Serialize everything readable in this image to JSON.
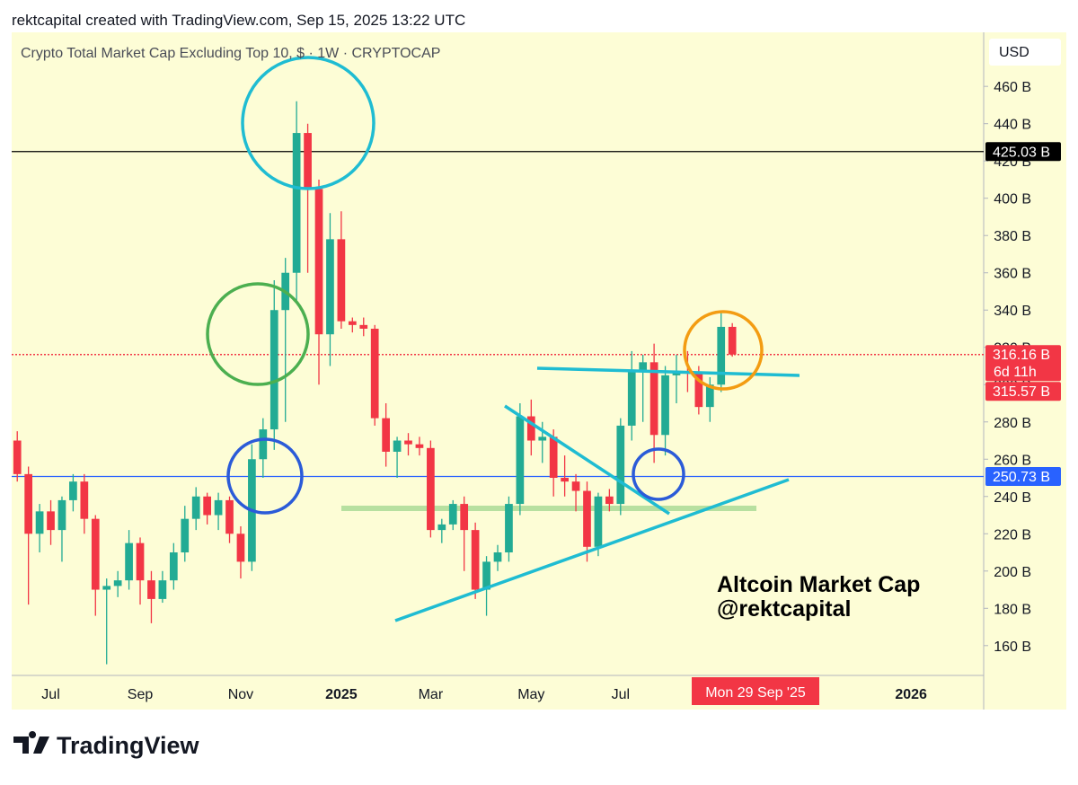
{
  "header": "rektcapital created with TradingView.com, Sep 15, 2025 13:22 UTC",
  "chart_data": {
    "type": "candlestick",
    "title": "Crypto Total Market Cap Excluding Top 10, $ · 1W · CRYPTOCAP",
    "currency": "USD",
    "annotation": [
      "Altcoin Market Cap",
      "@rektcapital"
    ],
    "crosshair_label": "Mon 29 Sep '25",
    "countdown": "6d 11h",
    "up_color": "#22ab94",
    "down_color": "#f23645",
    "categories": [
      null,
      null,
      null,
      "Jul",
      null,
      null,
      null,
      null,
      null,
      null,
      null,
      "Sep",
      null,
      null,
      null,
      null,
      null,
      null,
      null,
      null,
      "Nov",
      null,
      null,
      null,
      null,
      null,
      null,
      null,
      null,
      "2025",
      null,
      null,
      null,
      null,
      null,
      null,
      null,
      "Mar",
      null,
      null,
      null,
      null,
      null,
      null,
      null,
      null,
      "May",
      null,
      null,
      null,
      null,
      null,
      null,
      null,
      "Jul",
      null,
      null,
      null,
      null,
      null,
      null,
      null,
      null,
      null,
      null,
      null,
      null,
      null,
      null,
      null,
      null,
      null,
      null,
      null,
      null,
      null,
      null,
      null,
      null,
      null,
      "2026",
      null,
      null,
      null,
      null,
      null,
      null
    ],
    "open": [
      270,
      252,
      220,
      232,
      222,
      238,
      248,
      228,
      190,
      192,
      195,
      215,
      195,
      185,
      195,
      210,
      228,
      240,
      230,
      238,
      220,
      205,
      260,
      276,
      340,
      360,
      435,
      405,
      327,
      378,
      334,
      332,
      330,
      282,
      264,
      270,
      268,
      266,
      222,
      225,
      236,
      222,
      190,
      205,
      210,
      236,
      283,
      270,
      272,
      250,
      248,
      243,
      213,
      240,
      236,
      278,
      307,
      312,
      273,
      305,
      307,
      306,
      288,
      300,
      331,
      null,
      null,
      null,
      null,
      null,
      null,
      null,
      null,
      null,
      null,
      null,
      null,
      null,
      null,
      null,
      null,
      null,
      null,
      null,
      null,
      null,
      null
    ],
    "high": [
      275,
      256,
      236,
      238,
      240,
      252,
      252,
      230,
      196,
      200,
      222,
      218,
      200,
      200,
      215,
      235,
      245,
      242,
      242,
      240,
      224,
      268,
      282,
      356,
      368,
      452,
      440,
      410,
      392,
      393,
      336,
      336,
      332,
      290,
      272,
      274,
      272,
      270,
      228,
      238,
      240,
      226,
      208,
      214,
      240,
      290,
      292,
      280,
      276,
      262,
      252,
      248,
      242,
      244,
      282,
      318,
      316,
      322,
      310,
      316,
      318,
      310,
      304,
      339,
      333,
      null,
      null,
      null,
      null,
      null,
      null,
      null,
      null,
      null,
      null,
      null,
      null,
      null,
      null,
      null,
      null,
      null,
      null,
      null,
      null,
      null,
      null
    ],
    "low": [
      248,
      182,
      210,
      214,
      205,
      232,
      220,
      176,
      150,
      186,
      190,
      182,
      172,
      183,
      190,
      205,
      222,
      225,
      222,
      215,
      196,
      200,
      250,
      265,
      280,
      345,
      360,
      300,
      310,
      330,
      328,
      326,
      278,
      256,
      250,
      262,
      262,
      218,
      215,
      222,
      200,
      185,
      176,
      200,
      205,
      230,
      262,
      258,
      240,
      240,
      232,
      205,
      208,
      232,
      230,
      270,
      280,
      258,
      262,
      290,
      296,
      284,
      280,
      296,
      315,
      null,
      null,
      null,
      null,
      null,
      null,
      null,
      null,
      null,
      null,
      null,
      null,
      null,
      null,
      null,
      null,
      null,
      null,
      null,
      null,
      null,
      null
    ],
    "close": [
      252,
      220,
      232,
      222,
      238,
      248,
      228,
      190,
      192,
      195,
      215,
      195,
      185,
      195,
      210,
      228,
      240,
      230,
      238,
      220,
      205,
      260,
      276,
      340,
      360,
      435,
      405,
      327,
      378,
      334,
      332,
      330,
      282,
      264,
      270,
      268,
      266,
      222,
      225,
      236,
      222,
      190,
      205,
      210,
      236,
      283,
      270,
      272,
      250,
      248,
      243,
      213,
      240,
      236,
      278,
      307,
      312,
      273,
      305,
      307,
      306,
      288,
      300,
      331,
      316.16,
      null,
      null,
      null,
      null,
      null,
      null,
      null,
      null,
      null,
      null,
      null,
      null,
      null,
      null,
      null,
      null,
      null,
      null,
      null,
      null,
      null,
      null
    ],
    "ylim": [
      144,
      489
    ],
    "yticks": [
      {
        "value": 160,
        "label": "160 B"
      },
      {
        "value": 180,
        "label": "180 B"
      },
      {
        "value": 200,
        "label": "200 B"
      },
      {
        "value": 220,
        "label": "220 B"
      },
      {
        "value": 240,
        "label": "240 B"
      },
      {
        "value": 260,
        "label": "260 B"
      },
      {
        "value": 280,
        "label": "280 B"
      },
      {
        "value": 300,
        "label": "300 B"
      },
      {
        "value": 320,
        "label": "320 B"
      },
      {
        "value": 340,
        "label": "340 B"
      },
      {
        "value": 360,
        "label": "360 B"
      },
      {
        "value": 380,
        "label": "380 B"
      },
      {
        "value": 400,
        "label": "400 B"
      },
      {
        "value": 420,
        "label": "420 B"
      },
      {
        "value": 440,
        "label": "440 B"
      },
      {
        "value": 460,
        "label": "460 B"
      }
    ],
    "price_lines": [
      {
        "value": 425.03,
        "label": "425.03 B",
        "color": "#000000",
        "style": "solid"
      },
      {
        "value": 316.16,
        "label": "316.16 B",
        "color": "#f23645",
        "style": "dotted"
      },
      {
        "value": 315.57,
        "label": "315.57 B",
        "color": "#f23645",
        "style": "none"
      },
      {
        "value": 250.73,
        "label": "250.73 B",
        "color": "#2962ff",
        "style": "solid"
      }
    ]
  },
  "footer": "TradingView"
}
